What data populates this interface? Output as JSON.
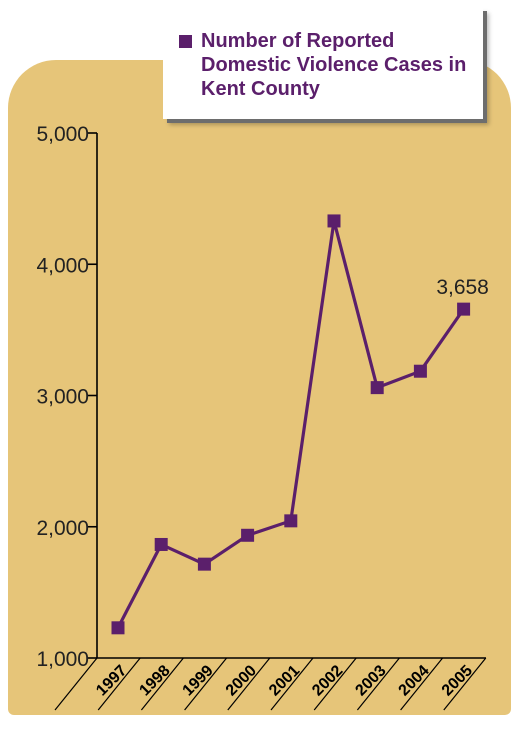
{
  "chart_data": {
    "type": "line",
    "title": "",
    "xlabel": "",
    "ylabel": "",
    "categories": [
      "1997",
      "1998",
      "1999",
      "2000",
      "2001",
      "2002",
      "2003",
      "2004",
      "2005"
    ],
    "series": [
      {
        "name": "Number of Reported Domestic Violence Cases in Kent County",
        "values": [
          1230,
          1865,
          1715,
          1935,
          2045,
          4330,
          3060,
          3185,
          3658
        ]
      }
    ],
    "ylim": [
      1000,
      5000
    ],
    "yticks": [
      1000,
      2000,
      3000,
      4000,
      5000
    ],
    "ytick_labels": [
      "1,000",
      "2,000",
      "3,000",
      "4,000",
      "5,000"
    ],
    "annotations": [
      {
        "category": "2005",
        "text": "3,658"
      }
    ],
    "legend_position": "top-right",
    "grid": false
  },
  "colors": {
    "series": "#5b1f6b",
    "panel": "#e6c579",
    "axis": "#000000",
    "legend_text": "#5b1f6b"
  }
}
